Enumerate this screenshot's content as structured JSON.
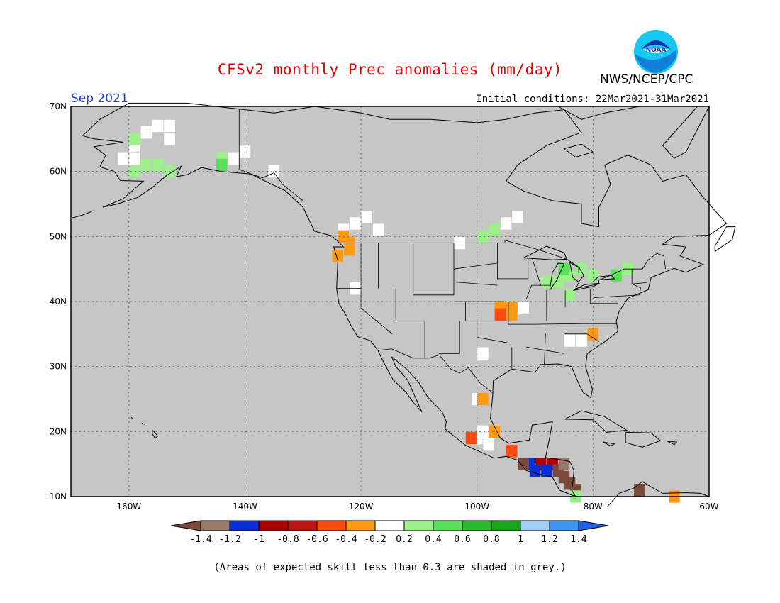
{
  "title": "CFSv2 monthly Prec anomalies (mm/day)",
  "agency": "NWS/NCEP/CPC",
  "logo_text": "NOAA",
  "valid_month": "Sep 2021",
  "initial_conditions": "Initial conditions: 22Mar2021-31Mar2021",
  "footnote": "(Areas of expected skill less than 0.3 are shaded in grey.)",
  "map": {
    "region": "North America",
    "background_color": "#c6c6c6",
    "lon_range": [
      -170,
      -60
    ],
    "lat_range": [
      10,
      70
    ],
    "lat_labels": [
      "70N",
      "60N",
      "50N",
      "40N",
      "30N",
      "20N",
      "10N"
    ],
    "lon_labels": [
      "160W",
      "140W",
      "120W",
      "100W",
      "80W",
      "60W"
    ]
  },
  "colorbar": {
    "colors": [
      "#7b4a3a",
      "#987a6c",
      "#0a2fd6",
      "#b10000",
      "#c41212",
      "#ff4a10",
      "#ff9a10",
      "#ffffff",
      "#9cf08a",
      "#5ae05a",
      "#2ab92a",
      "#18a818",
      "#a0cff8",
      "#3c96f0",
      "#2060e8"
    ],
    "labels": [
      "-1.4",
      "-1.2",
      "-1",
      "-0.8",
      "-0.6",
      "-0.4",
      "-0.2",
      "0.2",
      "0.4",
      "0.6",
      "0.8",
      "1",
      "1.2",
      "1.4"
    ]
  },
  "anomaly_cells": [
    {
      "lon": -159,
      "lat": 64,
      "category": "white"
    },
    {
      "lon": -157,
      "lat": 66,
      "category": "white"
    },
    {
      "lon": -155,
      "lat": 67,
      "category": "white"
    },
    {
      "lon": -153,
      "lat": 67,
      "category": "white"
    },
    {
      "lon": -153,
      "lat": 65,
      "category": "white"
    },
    {
      "lon": -161,
      "lat": 62,
      "category": "white"
    },
    {
      "lon": -159,
      "lat": 62,
      "category": "white"
    },
    {
      "lon": -157,
      "lat": 61,
      "category": "light_green"
    },
    {
      "lon": -159,
      "lat": 60,
      "category": "light_green"
    },
    {
      "lon": -155,
      "lat": 61,
      "category": "light_green"
    },
    {
      "lon": -153,
      "lat": 60,
      "category": "light_green"
    },
    {
      "lon": -159,
      "lat": 65,
      "category": "light_green"
    },
    {
      "lon": -144,
      "lat": 62,
      "category": "light_green"
    },
    {
      "lon": -142,
      "lat": 62,
      "category": "white"
    },
    {
      "lon": -140,
      "lat": 63,
      "category": "white"
    },
    {
      "lon": -144,
      "lat": 61,
      "category": "green"
    },
    {
      "lon": -135,
      "lat": 60,
      "category": "white"
    },
    {
      "lon": -121,
      "lat": 52,
      "category": "white"
    },
    {
      "lon": -119,
      "lat": 53,
      "category": "white"
    },
    {
      "lon": -117,
      "lat": 51,
      "category": "white"
    },
    {
      "lon": -123,
      "lat": 51,
      "category": "white"
    },
    {
      "lon": -123,
      "lat": 50,
      "category": "orange"
    },
    {
      "lon": -122,
      "lat": 49,
      "category": "orange"
    },
    {
      "lon": -122,
      "lat": 48,
      "category": "orange"
    },
    {
      "lon": -124,
      "lat": 47,
      "category": "orange"
    },
    {
      "lon": -121,
      "lat": 42,
      "category": "white"
    },
    {
      "lon": -97,
      "lat": 51,
      "category": "light_green"
    },
    {
      "lon": -99,
      "lat": 50,
      "category": "light_green"
    },
    {
      "lon": -95,
      "lat": 52,
      "category": "white"
    },
    {
      "lon": -93,
      "lat": 53,
      "category": "white"
    },
    {
      "lon": -103,
      "lat": 49,
      "category": "white"
    },
    {
      "lon": -84,
      "lat": 44,
      "category": "light_green"
    },
    {
      "lon": -82,
      "lat": 45,
      "category": "light_green"
    },
    {
      "lon": -80,
      "lat": 44,
      "category": "light_green"
    },
    {
      "lon": -88,
      "lat": 43,
      "category": "light_green"
    },
    {
      "lon": -86,
      "lat": 43,
      "category": "light_green"
    },
    {
      "lon": -84,
      "lat": 41,
      "category": "light_green"
    },
    {
      "lon": -74,
      "lat": 45,
      "category": "light_green"
    },
    {
      "lon": -76,
      "lat": 44,
      "category": "green"
    },
    {
      "lon": -85,
      "lat": 45,
      "category": "green"
    },
    {
      "lon": -96,
      "lat": 39,
      "category": "orange"
    },
    {
      "lon": -94,
      "lat": 39,
      "category": "orange"
    },
    {
      "lon": -96,
      "lat": 38,
      "category": "red"
    },
    {
      "lon": -94,
      "lat": 38,
      "category": "orange"
    },
    {
      "lon": -92,
      "lat": 39,
      "category": "white"
    },
    {
      "lon": -80,
      "lat": 35,
      "category": "orange"
    },
    {
      "lon": -82,
      "lat": 34,
      "category": "white"
    },
    {
      "lon": -84,
      "lat": 34,
      "category": "white"
    },
    {
      "lon": -99,
      "lat": 32,
      "category": "white"
    },
    {
      "lon": -100,
      "lat": 25,
      "category": "white"
    },
    {
      "lon": -99,
      "lat": 25,
      "category": "orange"
    },
    {
      "lon": -97,
      "lat": 20,
      "category": "orange"
    },
    {
      "lon": -99,
      "lat": 20,
      "category": "white"
    },
    {
      "lon": -100,
      "lat": 19,
      "category": "white"
    },
    {
      "lon": -101,
      "lat": 19,
      "category": "red"
    },
    {
      "lon": -98,
      "lat": 18,
      "category": "white"
    },
    {
      "lon": -94,
      "lat": 17,
      "category": "red"
    },
    {
      "lon": -91,
      "lat": 15,
      "category": "blue"
    },
    {
      "lon": -89,
      "lat": 15,
      "category": "dark_red"
    },
    {
      "lon": -87,
      "lat": 15,
      "category": "dark_red"
    },
    {
      "lon": -90,
      "lat": 14,
      "category": "blue"
    },
    {
      "lon": -88,
      "lat": 14,
      "category": "blue"
    },
    {
      "lon": -92,
      "lat": 15,
      "category": "dark_brown"
    },
    {
      "lon": -86,
      "lat": 14,
      "category": "dark_brown"
    },
    {
      "lon": -85,
      "lat": 13,
      "category": "dark_brown"
    },
    {
      "lon": -84,
      "lat": 12,
      "category": "dark_brown"
    },
    {
      "lon": -83,
      "lat": 11,
      "category": "dark_brown"
    },
    {
      "lon": -85,
      "lat": 15,
      "category": "brown"
    },
    {
      "lon": -83,
      "lat": 10,
      "category": "light_green"
    },
    {
      "lon": -72,
      "lat": 11,
      "category": "dark_brown"
    },
    {
      "lon": -66,
      "lat": 10,
      "category": "orange"
    }
  ]
}
